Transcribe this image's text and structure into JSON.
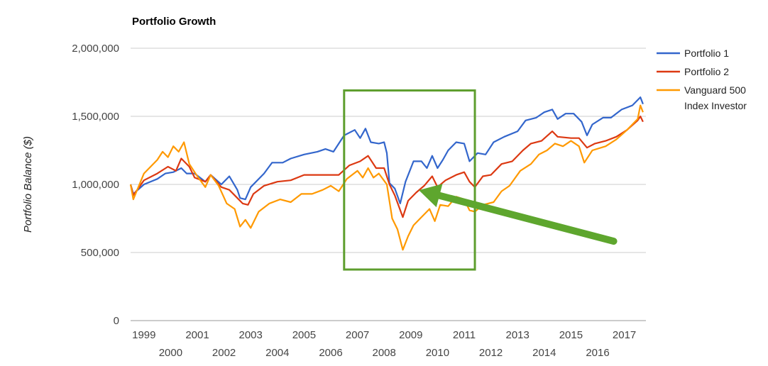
{
  "chart_data": {
    "type": "line",
    "title": "Portfolio Growth",
    "xlabel": "",
    "ylabel": "Portfolio Balance ($)",
    "ylim": [
      0,
      2000000
    ],
    "xlim": [
      1999.0,
      2018.25
    ],
    "yticks": [
      0,
      500000,
      1000000,
      1500000,
      2000000
    ],
    "ytick_labels": [
      "0",
      "500,000",
      "1,000,000",
      "1,500,000",
      "2,000,000"
    ],
    "xtick_labels": [
      "1999",
      "2000",
      "2001",
      "2002",
      "2003",
      "2004",
      "2005",
      "2006",
      "2007",
      "2008",
      "2009",
      "2010",
      "2011",
      "2012",
      "2013",
      "2014",
      "2015",
      "2016",
      "2017"
    ],
    "grid": true,
    "legend_position": "right",
    "series": [
      {
        "name": "Portfolio 1",
        "color": "#3366cc",
        "points": [
          [
            1999.0,
            1000000
          ],
          [
            1999.1,
            930000
          ],
          [
            1999.5,
            1000000
          ],
          [
            2000.0,
            1040000
          ],
          [
            2000.3,
            1080000
          ],
          [
            2000.6,
            1090000
          ],
          [
            2000.9,
            1120000
          ],
          [
            2001.1,
            1080000
          ],
          [
            2001.4,
            1080000
          ],
          [
            2001.8,
            1020000
          ],
          [
            2002.0,
            1070000
          ],
          [
            2002.4,
            1000000
          ],
          [
            2002.7,
            1060000
          ],
          [
            2003.0,
            960000
          ],
          [
            2003.1,
            900000
          ],
          [
            2003.3,
            890000
          ],
          [
            2003.5,
            980000
          ],
          [
            2004.0,
            1080000
          ],
          [
            2004.3,
            1160000
          ],
          [
            2004.7,
            1160000
          ],
          [
            2005.0,
            1190000
          ],
          [
            2005.5,
            1220000
          ],
          [
            2006.0,
            1240000
          ],
          [
            2006.3,
            1260000
          ],
          [
            2006.6,
            1240000
          ],
          [
            2007.0,
            1360000
          ],
          [
            2007.4,
            1400000
          ],
          [
            2007.6,
            1340000
          ],
          [
            2007.8,
            1410000
          ],
          [
            2008.0,
            1310000
          ],
          [
            2008.3,
            1300000
          ],
          [
            2008.5,
            1310000
          ],
          [
            2008.6,
            1230000
          ],
          [
            2008.7,
            1010000
          ],
          [
            2008.9,
            970000
          ],
          [
            2009.1,
            860000
          ],
          [
            2009.3,
            1020000
          ],
          [
            2009.6,
            1170000
          ],
          [
            2009.9,
            1170000
          ],
          [
            2010.1,
            1120000
          ],
          [
            2010.3,
            1210000
          ],
          [
            2010.5,
            1120000
          ],
          [
            2010.7,
            1180000
          ],
          [
            2010.9,
            1250000
          ],
          [
            2011.2,
            1310000
          ],
          [
            2011.5,
            1300000
          ],
          [
            2011.7,
            1170000
          ],
          [
            2012.0,
            1230000
          ],
          [
            2012.3,
            1220000
          ],
          [
            2012.6,
            1310000
          ],
          [
            2013.0,
            1350000
          ],
          [
            2013.5,
            1390000
          ],
          [
            2013.8,
            1470000
          ],
          [
            2014.2,
            1490000
          ],
          [
            2014.5,
            1530000
          ],
          [
            2014.8,
            1550000
          ],
          [
            2015.0,
            1480000
          ],
          [
            2015.3,
            1520000
          ],
          [
            2015.6,
            1520000
          ],
          [
            2015.9,
            1460000
          ],
          [
            2016.1,
            1360000
          ],
          [
            2016.3,
            1440000
          ],
          [
            2016.7,
            1490000
          ],
          [
            2017.0,
            1490000
          ],
          [
            2017.4,
            1550000
          ],
          [
            2017.8,
            1580000
          ],
          [
            2018.1,
            1640000
          ],
          [
            2018.2,
            1590000
          ]
        ]
      },
      {
        "name": "Portfolio 2",
        "color": "#dc3912",
        "points": [
          [
            1999.0,
            1000000
          ],
          [
            1999.1,
            920000
          ],
          [
            1999.5,
            1030000
          ],
          [
            2000.0,
            1080000
          ],
          [
            2000.4,
            1130000
          ],
          [
            2000.7,
            1100000
          ],
          [
            2000.9,
            1190000
          ],
          [
            2001.2,
            1130000
          ],
          [
            2001.4,
            1050000
          ],
          [
            2001.8,
            1020000
          ],
          [
            2002.0,
            1070000
          ],
          [
            2002.4,
            980000
          ],
          [
            2002.7,
            960000
          ],
          [
            2003.0,
            900000
          ],
          [
            2003.2,
            860000
          ],
          [
            2003.4,
            850000
          ],
          [
            2003.6,
            930000
          ],
          [
            2004.0,
            990000
          ],
          [
            2004.5,
            1020000
          ],
          [
            2005.0,
            1030000
          ],
          [
            2005.5,
            1070000
          ],
          [
            2006.0,
            1070000
          ],
          [
            2006.5,
            1070000
          ],
          [
            2006.8,
            1070000
          ],
          [
            2007.2,
            1140000
          ],
          [
            2007.6,
            1170000
          ],
          [
            2007.9,
            1210000
          ],
          [
            2008.2,
            1120000
          ],
          [
            2008.5,
            1120000
          ],
          [
            2008.7,
            1000000
          ],
          [
            2008.9,
            920000
          ],
          [
            2009.2,
            760000
          ],
          [
            2009.4,
            880000
          ],
          [
            2009.7,
            940000
          ],
          [
            2010.0,
            990000
          ],
          [
            2010.3,
            1060000
          ],
          [
            2010.5,
            980000
          ],
          [
            2010.8,
            1030000
          ],
          [
            2011.2,
            1070000
          ],
          [
            2011.5,
            1090000
          ],
          [
            2011.7,
            1020000
          ],
          [
            2011.9,
            980000
          ],
          [
            2012.2,
            1060000
          ],
          [
            2012.5,
            1070000
          ],
          [
            2012.9,
            1150000
          ],
          [
            2013.3,
            1170000
          ],
          [
            2013.7,
            1250000
          ],
          [
            2014.0,
            1300000
          ],
          [
            2014.4,
            1320000
          ],
          [
            2014.8,
            1390000
          ],
          [
            2015.0,
            1350000
          ],
          [
            2015.5,
            1340000
          ],
          [
            2015.8,
            1340000
          ],
          [
            2016.1,
            1270000
          ],
          [
            2016.4,
            1300000
          ],
          [
            2016.8,
            1320000
          ],
          [
            2017.2,
            1350000
          ],
          [
            2017.6,
            1400000
          ],
          [
            2018.0,
            1470000
          ],
          [
            2018.1,
            1500000
          ],
          [
            2018.2,
            1460000
          ]
        ]
      },
      {
        "name": "Vanguard 500 Index Investor",
        "color": "#ff9900",
        "points": [
          [
            1999.0,
            1000000
          ],
          [
            1999.1,
            890000
          ],
          [
            1999.5,
            1080000
          ],
          [
            2000.0,
            1180000
          ],
          [
            2000.2,
            1240000
          ],
          [
            2000.4,
            1200000
          ],
          [
            2000.6,
            1280000
          ],
          [
            2000.8,
            1240000
          ],
          [
            2001.0,
            1310000
          ],
          [
            2001.2,
            1150000
          ],
          [
            2001.5,
            1060000
          ],
          [
            2001.8,
            980000
          ],
          [
            2002.0,
            1070000
          ],
          [
            2002.3,
            990000
          ],
          [
            2002.6,
            860000
          ],
          [
            2002.9,
            820000
          ],
          [
            2003.1,
            690000
          ],
          [
            2003.3,
            740000
          ],
          [
            2003.5,
            680000
          ],
          [
            2003.8,
            800000
          ],
          [
            2004.2,
            860000
          ],
          [
            2004.6,
            890000
          ],
          [
            2005.0,
            870000
          ],
          [
            2005.4,
            930000
          ],
          [
            2005.8,
            930000
          ],
          [
            2006.2,
            960000
          ],
          [
            2006.5,
            990000
          ],
          [
            2006.8,
            950000
          ],
          [
            2007.1,
            1040000
          ],
          [
            2007.5,
            1100000
          ],
          [
            2007.7,
            1050000
          ],
          [
            2007.9,
            1120000
          ],
          [
            2008.1,
            1050000
          ],
          [
            2008.3,
            1080000
          ],
          [
            2008.6,
            1000000
          ],
          [
            2008.8,
            750000
          ],
          [
            2009.0,
            670000
          ],
          [
            2009.2,
            520000
          ],
          [
            2009.4,
            620000
          ],
          [
            2009.6,
            700000
          ],
          [
            2009.9,
            760000
          ],
          [
            2010.2,
            820000
          ],
          [
            2010.4,
            730000
          ],
          [
            2010.6,
            850000
          ],
          [
            2010.9,
            840000
          ],
          [
            2011.2,
            910000
          ],
          [
            2011.5,
            890000
          ],
          [
            2011.7,
            810000
          ],
          [
            2011.9,
            800000
          ],
          [
            2012.2,
            850000
          ],
          [
            2012.6,
            870000
          ],
          [
            2012.9,
            950000
          ],
          [
            2013.2,
            990000
          ],
          [
            2013.6,
            1100000
          ],
          [
            2014.0,
            1150000
          ],
          [
            2014.3,
            1220000
          ],
          [
            2014.6,
            1250000
          ],
          [
            2014.9,
            1300000
          ],
          [
            2015.2,
            1280000
          ],
          [
            2015.5,
            1320000
          ],
          [
            2015.8,
            1280000
          ],
          [
            2016.0,
            1160000
          ],
          [
            2016.3,
            1250000
          ],
          [
            2016.8,
            1280000
          ],
          [
            2017.2,
            1330000
          ],
          [
            2017.6,
            1400000
          ],
          [
            2018.0,
            1480000
          ],
          [
            2018.1,
            1580000
          ],
          [
            2018.2,
            1530000
          ]
        ]
      }
    ],
    "annotations": {
      "highlight_box": {
        "color": "#5e9e2e",
        "x_range": [
          2007.0,
          2011.9
        ],
        "y_range": [
          375000,
          1690000
        ]
      },
      "arrow": {
        "color": "#5ea62e",
        "from": [
          2017.1,
          583000
        ],
        "to": [
          2009.8,
          958000
        ]
      }
    }
  }
}
